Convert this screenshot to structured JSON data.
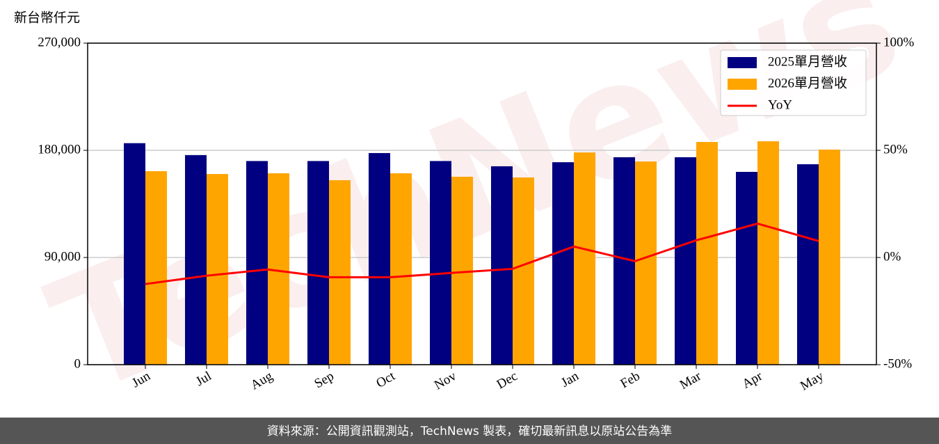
{
  "chart_data": {
    "type": "bar",
    "ylabel": "新台幣仟元",
    "categories": [
      "Jun",
      "Jul",
      "Aug",
      "Sep",
      "Oct",
      "Nov",
      "Dec",
      "Jan",
      "Feb",
      "Mar",
      "Apr",
      "May"
    ],
    "series": [
      {
        "name": "2025單月營收",
        "color": "#000080",
        "values": [
          186000,
          176000,
          171000,
          171000,
          177700,
          171000,
          166600,
          170000,
          174200,
          174200,
          161900,
          168300
        ]
      },
      {
        "name": "2026單月營收",
        "color": "#ffa500",
        "values": [
          162500,
          160100,
          160700,
          154900,
          160700,
          157800,
          157200,
          178200,
          170600,
          187000,
          187600,
          180600
        ]
      },
      {
        "name": "YoY",
        "color": "#ff0000",
        "type": "line",
        "axis": "y2",
        "values": [
          -12.4,
          -8.5,
          -5.6,
          -9.2,
          -9.2,
          -7.2,
          -5.3,
          5.1,
          -1.7,
          8.0,
          15.8,
          7.7
        ]
      }
    ],
    "ylim": [
      0,
      270000
    ],
    "yticks": [
      0,
      {
        "value": 90000,
        "label": "90,000"
      },
      {
        "value": 180000,
        "label": "180,000"
      },
      {
        "value": 270000,
        "label": "270,000"
      }
    ],
    "y2lim": [
      -50,
      100
    ],
    "y2ticks": [
      {
        "value": -50,
        "label": "-50%"
      },
      {
        "value": 0,
        "label": "0%"
      },
      {
        "value": 50,
        "label": "50%"
      },
      {
        "value": 100,
        "label": "100%"
      }
    ],
    "grid": true,
    "legend": "upper right",
    "watermark": "TechNews",
    "footer": "資料來源：公開資訊觀測站，TechNews 製表，確切最新訊息以原站公告為準"
  }
}
